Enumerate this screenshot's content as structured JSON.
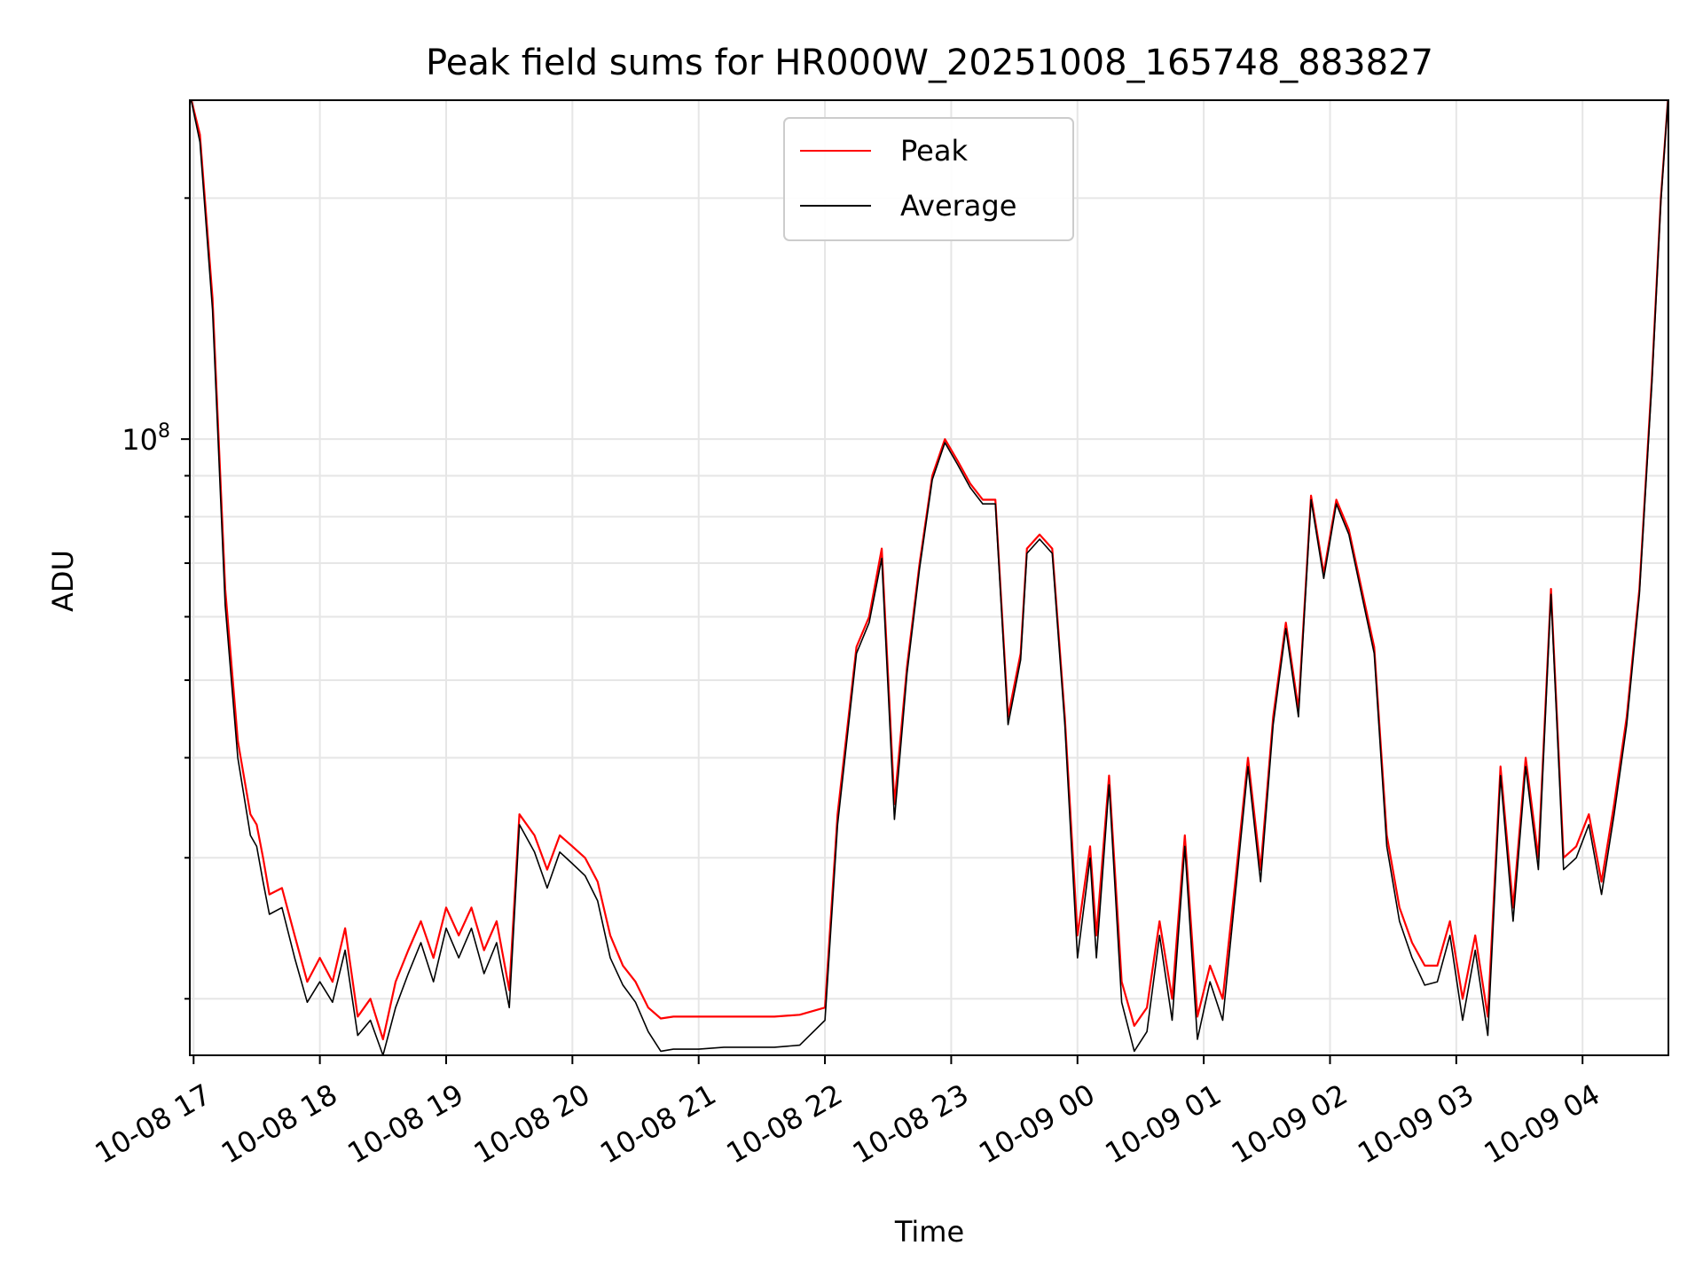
{
  "chart_data": {
    "type": "line",
    "title": "Peak field sums for HR000W_20251008_165748_883827",
    "xlabel": "Time",
    "ylabel": "ADU",
    "yscale": "log",
    "ylim": [
      17000000,
      265000000
    ],
    "xlim": [
      16.97,
      28.68
    ],
    "x_units": "hours since 2025-10-08 00:00",
    "ytick_label": {
      "base": "10",
      "exp": "8"
    },
    "xticks": [
      {
        "x": 17,
        "label": "10-08 17"
      },
      {
        "x": 18,
        "label": "10-08 18"
      },
      {
        "x": 19,
        "label": "10-08 19"
      },
      {
        "x": 20,
        "label": "10-08 20"
      },
      {
        "x": 21,
        "label": "10-08 21"
      },
      {
        "x": 22,
        "label": "10-08 22"
      },
      {
        "x": 23,
        "label": "10-08 23"
      },
      {
        "x": 24,
        "label": "10-09 00"
      },
      {
        "x": 25,
        "label": "10-09 01"
      },
      {
        "x": 26,
        "label": "10-09 02"
      },
      {
        "x": 27,
        "label": "10-09 03"
      },
      {
        "x": 28,
        "label": "10-09 04"
      }
    ],
    "legend": {
      "location": "upper center",
      "entries": [
        "Peak",
        "Average"
      ]
    },
    "grid": true,
    "series": [
      {
        "name": "Peak",
        "color": "#ff0000",
        "x": [
          16.97,
          17.05,
          17.15,
          17.25,
          17.35,
          17.45,
          17.5,
          17.55,
          17.6,
          17.7,
          17.8,
          17.9,
          18.0,
          18.1,
          18.2,
          18.3,
          18.4,
          18.5,
          18.6,
          18.7,
          18.8,
          18.9,
          19.0,
          19.1,
          19.2,
          19.3,
          19.4,
          19.5,
          19.58,
          19.7,
          19.8,
          19.9,
          20.0,
          20.1,
          20.2,
          20.3,
          20.4,
          20.5,
          20.6,
          20.7,
          20.8,
          20.9,
          21.0,
          21.2,
          21.4,
          21.6,
          21.8,
          22.0,
          22.1,
          22.25,
          22.35,
          22.45,
          22.55,
          22.65,
          22.75,
          22.85,
          22.95,
          23.05,
          23.15,
          23.25,
          23.35,
          23.45,
          23.55,
          23.6,
          23.7,
          23.8,
          23.9,
          24.0,
          24.1,
          24.15,
          24.25,
          24.35,
          24.45,
          24.55,
          24.65,
          24.75,
          24.85,
          24.95,
          25.05,
          25.15,
          25.25,
          25.35,
          25.45,
          25.55,
          25.65,
          25.75,
          25.85,
          25.95,
          26.05,
          26.15,
          26.25,
          26.35,
          26.45,
          26.55,
          26.65,
          26.75,
          26.85,
          26.95,
          27.05,
          27.15,
          27.25,
          27.35,
          27.45,
          27.55,
          27.65,
          27.75,
          27.85,
          27.95,
          28.05,
          28.15,
          28.25,
          28.35,
          28.45,
          28.55,
          28.62,
          28.68
        ],
        "values": [
          270000000,
          240000000,
          150000000,
          65000000,
          42000000,
          34000000,
          33000000,
          30000000,
          27000000,
          27500000,
          24000000,
          21000000,
          22500000,
          21000000,
          24500000,
          19000000,
          20000000,
          17800000,
          21000000,
          23000000,
          25000000,
          22500000,
          26000000,
          24000000,
          26000000,
          23000000,
          25000000,
          20500000,
          34000000,
          32000000,
          29000000,
          32000000,
          31000000,
          30000000,
          28000000,
          24000000,
          22000000,
          21000000,
          19500000,
          18900000,
          19000000,
          19000000,
          19000000,
          19000000,
          19000000,
          19000000,
          19100000,
          19500000,
          34000000,
          55000000,
          60000000,
          73000000,
          35000000,
          52000000,
          70000000,
          90000000,
          100000000,
          94000000,
          88000000,
          84000000,
          84000000,
          45000000,
          54000000,
          73000000,
          76000000,
          73000000,
          45000000,
          24000000,
          31000000,
          24000000,
          38000000,
          21000000,
          18500000,
          19500000,
          25000000,
          20000000,
          32000000,
          19000000,
          22000000,
          20000000,
          28000000,
          40000000,
          29000000,
          45000000,
          59000000,
          46000000,
          85000000,
          68000000,
          84000000,
          77000000,
          65000000,
          55000000,
          32000000,
          26000000,
          23500000,
          22000000,
          22000000,
          25000000,
          20000000,
          24000000,
          19000000,
          39000000,
          26000000,
          40000000,
          30000000,
          65000000,
          30000000,
          31000000,
          34000000,
          28000000,
          35000000,
          45000000,
          65000000,
          120000000,
          200000000,
          270000000
        ]
      },
      {
        "name": "Average",
        "color": "#000000",
        "x": [
          16.97,
          17.05,
          17.15,
          17.25,
          17.35,
          17.45,
          17.5,
          17.55,
          17.6,
          17.7,
          17.8,
          17.9,
          18.0,
          18.1,
          18.2,
          18.3,
          18.4,
          18.5,
          18.6,
          18.7,
          18.8,
          18.9,
          19.0,
          19.1,
          19.2,
          19.3,
          19.4,
          19.5,
          19.58,
          19.7,
          19.8,
          19.9,
          20.0,
          20.1,
          20.2,
          20.3,
          20.4,
          20.5,
          20.6,
          20.7,
          20.8,
          20.9,
          21.0,
          21.2,
          21.4,
          21.6,
          21.8,
          22.0,
          22.1,
          22.25,
          22.35,
          22.45,
          22.55,
          22.65,
          22.75,
          22.85,
          22.95,
          23.05,
          23.15,
          23.25,
          23.35,
          23.45,
          23.55,
          23.6,
          23.7,
          23.8,
          23.9,
          24.0,
          24.1,
          24.15,
          24.25,
          24.35,
          24.45,
          24.55,
          24.65,
          24.75,
          24.85,
          24.95,
          25.05,
          25.15,
          25.25,
          25.35,
          25.45,
          25.55,
          25.65,
          25.75,
          25.85,
          25.95,
          26.05,
          26.15,
          26.25,
          26.35,
          26.45,
          26.55,
          26.65,
          26.75,
          26.85,
          26.95,
          27.05,
          27.15,
          27.25,
          27.35,
          27.45,
          27.55,
          27.65,
          27.75,
          27.85,
          27.95,
          28.05,
          28.15,
          28.25,
          28.35,
          28.45,
          28.55,
          28.62,
          28.68
        ],
        "values": [
          270000000,
          235000000,
          145000000,
          62000000,
          40000000,
          32000000,
          31000000,
          28000000,
          25500000,
          26000000,
          22500000,
          19800000,
          21000000,
          19800000,
          23000000,
          18000000,
          18800000,
          17000000,
          19500000,
          21500000,
          23500000,
          21000000,
          24500000,
          22500000,
          24500000,
          21500000,
          23500000,
          19500000,
          33000000,
          30500000,
          27500000,
          30500000,
          29500000,
          28500000,
          26500000,
          22500000,
          20800000,
          19800000,
          18200000,
          17200000,
          17300000,
          17300000,
          17300000,
          17400000,
          17400000,
          17400000,
          17500000,
          18800000,
          33000000,
          54000000,
          59000000,
          71000000,
          33500000,
          51000000,
          69000000,
          89000000,
          99000000,
          93000000,
          87000000,
          83000000,
          83000000,
          44000000,
          53000000,
          72000000,
          75000000,
          72000000,
          44000000,
          22500000,
          30000000,
          22500000,
          37000000,
          19800000,
          17200000,
          18200000,
          24000000,
          18800000,
          31000000,
          17800000,
          21000000,
          18800000,
          27000000,
          39000000,
          28000000,
          44000000,
          58000000,
          45000000,
          84000000,
          67000000,
          83000000,
          76000000,
          64000000,
          54000000,
          31000000,
          25000000,
          22500000,
          20800000,
          21000000,
          24000000,
          18800000,
          23000000,
          18000000,
          38000000,
          25000000,
          39000000,
          29000000,
          64000000,
          29000000,
          30000000,
          33000000,
          27000000,
          34000000,
          44000000,
          64000000,
          118000000,
          198000000,
          270000000
        ]
      }
    ]
  }
}
